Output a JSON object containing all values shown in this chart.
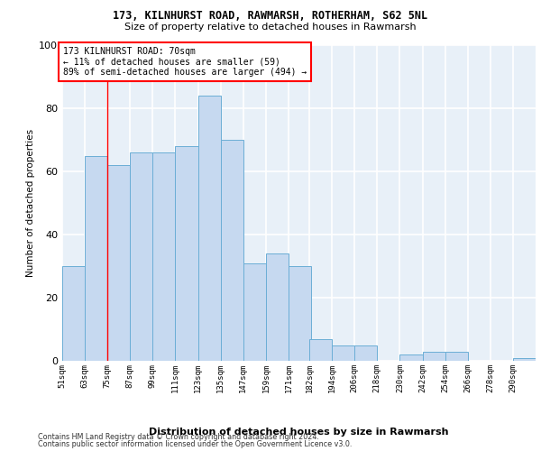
{
  "title1": "173, KILNHURST ROAD, RAWMARSH, ROTHERHAM, S62 5NL",
  "title2": "Size of property relative to detached houses in Rawmarsh",
  "xlabel": "Distribution of detached houses by size in Rawmarsh",
  "ylabel": "Number of detached properties",
  "bar_labels": [
    "51sqm",
    "63sqm",
    "75sqm",
    "87sqm",
    "99sqm",
    "111sqm",
    "123sqm",
    "135sqm",
    "147sqm",
    "159sqm",
    "171sqm",
    "182sqm",
    "194sqm",
    "206sqm",
    "218sqm",
    "230sqm",
    "242sqm",
    "254sqm",
    "266sqm",
    "278sqm",
    "290sqm"
  ],
  "bar_values": [
    30,
    65,
    62,
    66,
    66,
    68,
    84,
    70,
    31,
    34,
    30,
    7,
    5,
    5,
    0,
    2,
    3,
    3,
    0,
    0,
    1
  ],
  "bar_color": "#c6d9f0",
  "bar_edgecolor": "#6baed6",
  "bg_color": "#e8f0f8",
  "grid_color": "#ffffff",
  "bin_edges": [
    51,
    63,
    75,
    87,
    99,
    111,
    123,
    135,
    147,
    159,
    171,
    182,
    194,
    206,
    218,
    230,
    242,
    254,
    266,
    278,
    290,
    302
  ],
  "annotation_text_line1": "173 KILNHURST ROAD: 70sqm",
  "annotation_text_line2": "← 11% of detached houses are smaller (59)",
  "annotation_text_line3": "89% of semi-detached houses are larger (494) →",
  "red_line_x": 75,
  "ylim": [
    0,
    100
  ],
  "yticks": [
    0,
    20,
    40,
    60,
    80,
    100
  ],
  "footer1": "Contains HM Land Registry data © Crown copyright and database right 2024.",
  "footer2": "Contains public sector information licensed under the Open Government Licence v3.0."
}
